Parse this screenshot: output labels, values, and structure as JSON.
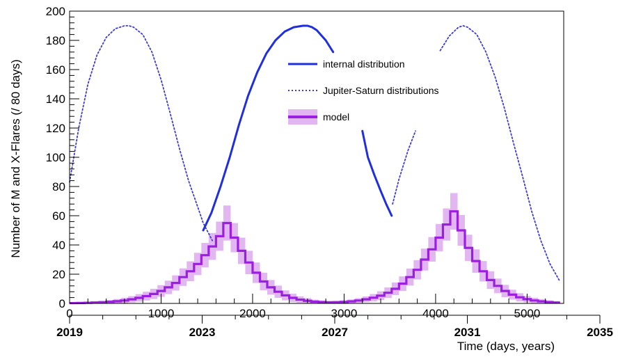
{
  "chart_data": {
    "type": "line",
    "xlabel": "Time (days, years)",
    "ylabel": "Number of M and X-Flares (/ 80 days)",
    "xlim": [
      0,
      5400
    ],
    "ylim": [
      0,
      200
    ],
    "x_ticks": [
      "0",
      "1000",
      "2000",
      "3000",
      "4000",
      "5000"
    ],
    "y_ticks": [
      "0",
      "20",
      "40",
      "60",
      "80",
      "100",
      "120",
      "140",
      "160",
      "180",
      "200"
    ],
    "year_ticks": [
      "2019",
      "2023",
      "2027",
      "2031",
      "2035"
    ],
    "legend_placement": "top-center",
    "series": [
      {
        "name": "internal distribution",
        "style": "solid",
        "color": "#1f2ee0",
        "x": [
          1460,
          1550,
          1650,
          1750,
          1850,
          1950,
          2050,
          2150,
          2250,
          2350,
          2450,
          2550,
          2600,
          2650,
          2700,
          2800,
          2880,
          3200,
          3260,
          3330,
          3400,
          3460,
          3520
        ],
        "y": [
          50,
          62,
          80,
          100,
          122,
          142,
          158,
          171,
          180,
          186,
          189,
          190,
          190,
          189,
          187,
          180,
          172,
          118,
          100,
          88,
          77,
          68,
          60
        ]
      },
      {
        "name": "Jupiter-Saturn distributions",
        "style": "dotted",
        "color": "#3b3bd4",
        "x": [
          0,
          100,
          200,
          300,
          400,
          500,
          600,
          650,
          700,
          800,
          900,
          1000,
          1100,
          1200,
          1300,
          1400,
          1460,
          1560,
          3530,
          3600,
          3700,
          3780,
          4050,
          4150,
          4250,
          4300,
          4350,
          4450,
          4550,
          4650,
          4750,
          4850,
          4950,
          5050,
          5150,
          5250,
          5350
        ],
        "y": [
          83,
          120,
          150,
          170,
          182,
          188,
          190,
          190,
          189,
          184,
          172,
          153,
          130,
          106,
          84,
          66,
          55,
          43,
          68,
          85,
          105,
          118,
          173,
          183,
          189,
          190,
          189,
          184,
          172,
          155,
          134,
          110,
          87,
          63,
          43,
          27,
          16
        ]
      },
      {
        "name": "model",
        "style": "step",
        "color": "#9b1fe0",
        "band_color": "#c87ae6",
        "x": [
          0,
          80,
          160,
          240,
          320,
          400,
          480,
          560,
          640,
          720,
          800,
          880,
          960,
          1040,
          1120,
          1200,
          1280,
          1360,
          1440,
          1520,
          1600,
          1680,
          1760,
          1840,
          1920,
          2000,
          2080,
          2160,
          2240,
          2320,
          2400,
          2480,
          2560,
          2640,
          2720,
          2800,
          2880,
          2960,
          3040,
          3120,
          3200,
          3280,
          3360,
          3440,
          3520,
          3600,
          3680,
          3760,
          3840,
          3920,
          4000,
          4080,
          4160,
          4240,
          4320,
          4400,
          4480,
          4560,
          4640,
          4720,
          4800,
          4880,
          4960,
          5040,
          5120,
          5200,
          5280
        ],
        "y": [
          0.2,
          0.3,
          0.4,
          0.6,
          0.8,
          1.1,
          1.5,
          2,
          2.8,
          3.8,
          5,
          6.5,
          8.5,
          11,
          14,
          18,
          22,
          27,
          33,
          39,
          46,
          55,
          45,
          36,
          28,
          21,
          15,
          11,
          8,
          5.5,
          3.8,
          2.6,
          1.8,
          1.2,
          0.9,
          0.7,
          0.8,
          1,
          1.4,
          2,
          2.8,
          3.9,
          5.3,
          7.3,
          10,
          13.5,
          18,
          23,
          30,
          37,
          45,
          54,
          63,
          50,
          38,
          29,
          22,
          16,
          12,
          8.5,
          6,
          4.2,
          2.9,
          2,
          1.4,
          0.9,
          0.6
        ],
        "error": [
          0.5,
          0.5,
          0.6,
          0.8,
          1,
          1.2,
          1.5,
          1.8,
          2.2,
          2.6,
          3,
          3.5,
          4,
          4.6,
          5.2,
          6,
          6.8,
          7.6,
          8.4,
          9.2,
          10,
          12,
          10,
          9,
          8,
          7,
          6,
          5,
          4.2,
          3.4,
          2.8,
          2.2,
          1.8,
          1.4,
          1.1,
          1,
          1,
          1.1,
          1.3,
          1.6,
          2,
          2.5,
          3,
          3.6,
          4.3,
          5,
          5.8,
          6.6,
          7.5,
          8.4,
          9.4,
          11,
          12.5,
          10.5,
          9,
          8,
          7,
          6,
          5,
          4.2,
          3.4,
          2.8,
          2.2,
          1.8,
          1.4,
          1.1,
          0.8
        ]
      }
    ]
  }
}
